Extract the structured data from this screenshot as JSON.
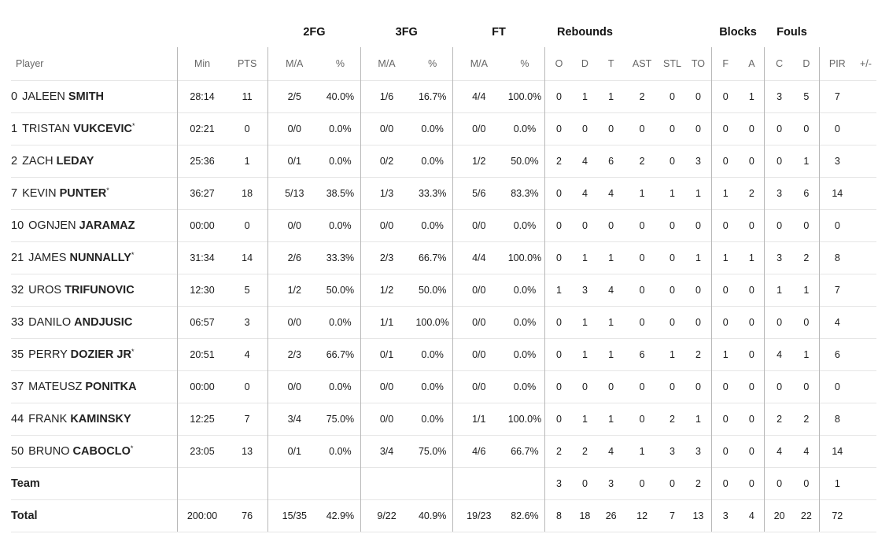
{
  "group_headers": {
    "fg2": "2FG",
    "fg3": "3FG",
    "ft": "FT",
    "rebounds": "Rebounds",
    "blocks": "Blocks",
    "fouls": "Fouls"
  },
  "column_headers": {
    "player": "Player",
    "min": "Min",
    "pts": "PTS",
    "fg2_ma": "M/A",
    "fg2_pct": "%",
    "fg3_ma": "M/A",
    "fg3_pct": "%",
    "ft_ma": "M/A",
    "ft_pct": "%",
    "reb_o": "O",
    "reb_d": "D",
    "reb_t": "T",
    "ast": "AST",
    "stl": "STL",
    "to": "TO",
    "blk_f": "F",
    "blk_a": "A",
    "foul_c": "C",
    "foul_d": "D",
    "pir": "PIR",
    "plusminus": "+/-"
  },
  "rows": [
    {
      "number": "0",
      "first": "JALEEN",
      "last": "SMITH",
      "starter": "",
      "min": "28:14",
      "pts": "11",
      "fg2_ma": "2/5",
      "fg2_pct": "40.0%",
      "fg3_ma": "1/6",
      "fg3_pct": "16.7%",
      "ft_ma": "4/4",
      "ft_pct": "100.0%",
      "reb_o": "0",
      "reb_d": "1",
      "reb_t": "1",
      "ast": "2",
      "stl": "0",
      "to": "0",
      "blk_f": "0",
      "blk_a": "1",
      "foul_c": "3",
      "foul_d": "5",
      "pir": "7",
      "plusminus": ""
    },
    {
      "number": "1",
      "first": "TRISTAN",
      "last": "VUKCEVIC",
      "starter": "*",
      "min": "02:21",
      "pts": "0",
      "fg2_ma": "0/0",
      "fg2_pct": "0.0%",
      "fg3_ma": "0/0",
      "fg3_pct": "0.0%",
      "ft_ma": "0/0",
      "ft_pct": "0.0%",
      "reb_o": "0",
      "reb_d": "0",
      "reb_t": "0",
      "ast": "0",
      "stl": "0",
      "to": "0",
      "blk_f": "0",
      "blk_a": "0",
      "foul_c": "0",
      "foul_d": "0",
      "pir": "0",
      "plusminus": ""
    },
    {
      "number": "2",
      "first": "ZACH",
      "last": "LEDAY",
      "starter": "",
      "min": "25:36",
      "pts": "1",
      "fg2_ma": "0/1",
      "fg2_pct": "0.0%",
      "fg3_ma": "0/2",
      "fg3_pct": "0.0%",
      "ft_ma": "1/2",
      "ft_pct": "50.0%",
      "reb_o": "2",
      "reb_d": "4",
      "reb_t": "6",
      "ast": "2",
      "stl": "0",
      "to": "3",
      "blk_f": "0",
      "blk_a": "0",
      "foul_c": "0",
      "foul_d": "1",
      "pir": "3",
      "plusminus": ""
    },
    {
      "number": "7",
      "first": "KEVIN",
      "last": "PUNTER",
      "starter": "*",
      "min": "36:27",
      "pts": "18",
      "fg2_ma": "5/13",
      "fg2_pct": "38.5%",
      "fg3_ma": "1/3",
      "fg3_pct": "33.3%",
      "ft_ma": "5/6",
      "ft_pct": "83.3%",
      "reb_o": "0",
      "reb_d": "4",
      "reb_t": "4",
      "ast": "1",
      "stl": "1",
      "to": "1",
      "blk_f": "1",
      "blk_a": "2",
      "foul_c": "3",
      "foul_d": "6",
      "pir": "14",
      "plusminus": ""
    },
    {
      "number": "10",
      "first": "OGNJEN",
      "last": "JARAMAZ",
      "starter": "",
      "min": "00:00",
      "pts": "0",
      "fg2_ma": "0/0",
      "fg2_pct": "0.0%",
      "fg3_ma": "0/0",
      "fg3_pct": "0.0%",
      "ft_ma": "0/0",
      "ft_pct": "0.0%",
      "reb_o": "0",
      "reb_d": "0",
      "reb_t": "0",
      "ast": "0",
      "stl": "0",
      "to": "0",
      "blk_f": "0",
      "blk_a": "0",
      "foul_c": "0",
      "foul_d": "0",
      "pir": "0",
      "plusminus": ""
    },
    {
      "number": "21",
      "first": "JAMES",
      "last": "NUNNALLY",
      "starter": "*",
      "min": "31:34",
      "pts": "14",
      "fg2_ma": "2/6",
      "fg2_pct": "33.3%",
      "fg3_ma": "2/3",
      "fg3_pct": "66.7%",
      "ft_ma": "4/4",
      "ft_pct": "100.0%",
      "reb_o": "0",
      "reb_d": "1",
      "reb_t": "1",
      "ast": "0",
      "stl": "0",
      "to": "1",
      "blk_f": "1",
      "blk_a": "1",
      "foul_c": "3",
      "foul_d": "2",
      "pir": "8",
      "plusminus": ""
    },
    {
      "number": "32",
      "first": "UROS",
      "last": "TRIFUNOVIC",
      "starter": "",
      "min": "12:30",
      "pts": "5",
      "fg2_ma": "1/2",
      "fg2_pct": "50.0%",
      "fg3_ma": "1/2",
      "fg3_pct": "50.0%",
      "ft_ma": "0/0",
      "ft_pct": "0.0%",
      "reb_o": "1",
      "reb_d": "3",
      "reb_t": "4",
      "ast": "0",
      "stl": "0",
      "to": "0",
      "blk_f": "0",
      "blk_a": "0",
      "foul_c": "1",
      "foul_d": "1",
      "pir": "7",
      "plusminus": ""
    },
    {
      "number": "33",
      "first": "DANILO",
      "last": "ANDJUSIC",
      "starter": "",
      "min": "06:57",
      "pts": "3",
      "fg2_ma": "0/0",
      "fg2_pct": "0.0%",
      "fg3_ma": "1/1",
      "fg3_pct": "100.0%",
      "ft_ma": "0/0",
      "ft_pct": "0.0%",
      "reb_o": "0",
      "reb_d": "1",
      "reb_t": "1",
      "ast": "0",
      "stl": "0",
      "to": "0",
      "blk_f": "0",
      "blk_a": "0",
      "foul_c": "0",
      "foul_d": "0",
      "pir": "4",
      "plusminus": ""
    },
    {
      "number": "35",
      "first": "PERRY",
      "last": "DOZIER JR",
      "starter": "*",
      "min": "20:51",
      "pts": "4",
      "fg2_ma": "2/3",
      "fg2_pct": "66.7%",
      "fg3_ma": "0/1",
      "fg3_pct": "0.0%",
      "ft_ma": "0/0",
      "ft_pct": "0.0%",
      "reb_o": "0",
      "reb_d": "1",
      "reb_t": "1",
      "ast": "6",
      "stl": "1",
      "to": "2",
      "blk_f": "1",
      "blk_a": "0",
      "foul_c": "4",
      "foul_d": "1",
      "pir": "6",
      "plusminus": ""
    },
    {
      "number": "37",
      "first": "MATEUSZ",
      "last": "PONITKA",
      "starter": "",
      "min": "00:00",
      "pts": "0",
      "fg2_ma": "0/0",
      "fg2_pct": "0.0%",
      "fg3_ma": "0/0",
      "fg3_pct": "0.0%",
      "ft_ma": "0/0",
      "ft_pct": "0.0%",
      "reb_o": "0",
      "reb_d": "0",
      "reb_t": "0",
      "ast": "0",
      "stl": "0",
      "to": "0",
      "blk_f": "0",
      "blk_a": "0",
      "foul_c": "0",
      "foul_d": "0",
      "pir": "0",
      "plusminus": ""
    },
    {
      "number": "44",
      "first": "FRANK",
      "last": "KAMINSKY",
      "starter": "",
      "min": "12:25",
      "pts": "7",
      "fg2_ma": "3/4",
      "fg2_pct": "75.0%",
      "fg3_ma": "0/0",
      "fg3_pct": "0.0%",
      "ft_ma": "1/1",
      "ft_pct": "100.0%",
      "reb_o": "0",
      "reb_d": "1",
      "reb_t": "1",
      "ast": "0",
      "stl": "2",
      "to": "1",
      "blk_f": "0",
      "blk_a": "0",
      "foul_c": "2",
      "foul_d": "2",
      "pir": "8",
      "plusminus": ""
    },
    {
      "number": "50",
      "first": "BRUNO",
      "last": "CABOCLO",
      "starter": "*",
      "min": "23:05",
      "pts": "13",
      "fg2_ma": "0/1",
      "fg2_pct": "0.0%",
      "fg3_ma": "3/4",
      "fg3_pct": "75.0%",
      "ft_ma": "4/6",
      "ft_pct": "66.7%",
      "reb_o": "2",
      "reb_d": "2",
      "reb_t": "4",
      "ast": "1",
      "stl": "3",
      "to": "3",
      "blk_f": "0",
      "blk_a": "0",
      "foul_c": "4",
      "foul_d": "4",
      "pir": "14",
      "plusminus": ""
    }
  ],
  "team_row": {
    "label": "Team",
    "min": "",
    "pts": "",
    "fg2_ma": "",
    "fg2_pct": "",
    "fg3_ma": "",
    "fg3_pct": "",
    "ft_ma": "",
    "ft_pct": "",
    "reb_o": "3",
    "reb_d": "0",
    "reb_t": "3",
    "ast": "0",
    "stl": "0",
    "to": "2",
    "blk_f": "0",
    "blk_a": "0",
    "foul_c": "0",
    "foul_d": "0",
    "pir": "1",
    "plusminus": ""
  },
  "total_row": {
    "label": "Total",
    "min": "200:00",
    "pts": "76",
    "fg2_ma": "15/35",
    "fg2_pct": "42.9%",
    "fg3_ma": "9/22",
    "fg3_pct": "40.9%",
    "ft_ma": "19/23",
    "ft_pct": "82.6%",
    "reb_o": "8",
    "reb_d": "18",
    "reb_t": "26",
    "ast": "12",
    "stl": "7",
    "to": "13",
    "blk_f": "3",
    "blk_a": "4",
    "foul_c": "20",
    "foul_d": "22",
    "pir": "72",
    "plusminus": ""
  }
}
